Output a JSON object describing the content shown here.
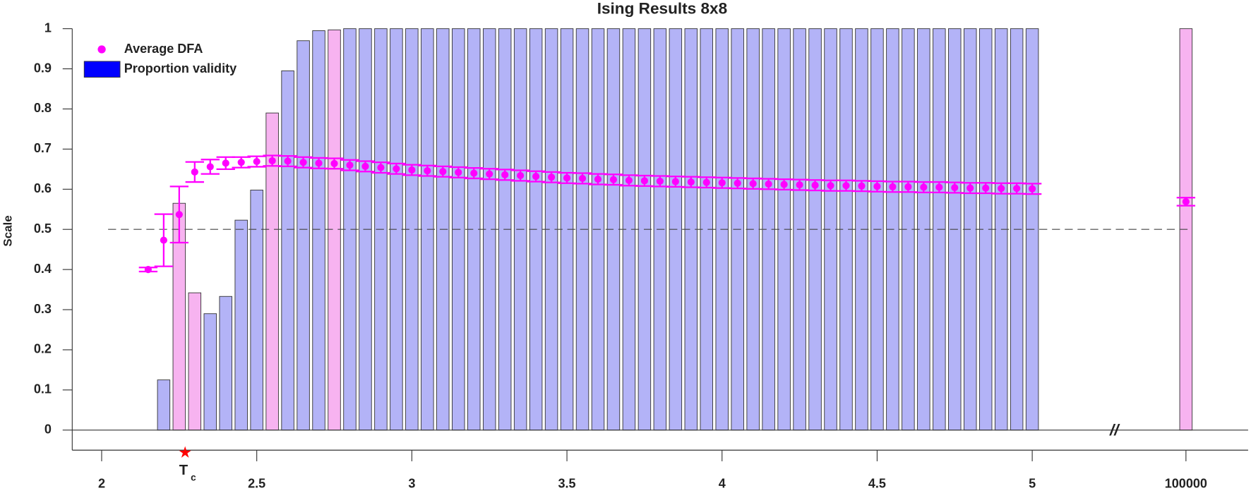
{
  "chart_data": {
    "type": "bar",
    "title": "Ising Results 8x8",
    "ylabel": "Scale",
    "legend": "upper left",
    "xlim": [
      1.9,
      5.2
    ],
    "ylim": [
      -0.05,
      1.0
    ],
    "xticks": [
      2,
      2.5,
      3,
      3.5,
      4,
      4.5,
      5
    ],
    "yticks": [
      0,
      0.1,
      0.2,
      0.3,
      0.4,
      0.5,
      0.6,
      0.7,
      0.8,
      0.9,
      1
    ],
    "break_tick": 100000,
    "break_label": "//",
    "hline": 0.5,
    "tc": {
      "x": 2.269,
      "label": "T",
      "sub": "c",
      "color": "#ff0000"
    },
    "series": [
      {
        "name": "Average DFA",
        "type": "errorbar",
        "color": "#ff00ff",
        "x": [
          2.15,
          2.2,
          2.25,
          2.3,
          2.35,
          2.4,
          2.45,
          2.5,
          2.55,
          2.6,
          2.65,
          2.7,
          2.75,
          2.8,
          2.85,
          2.9,
          2.95,
          3.0,
          3.05,
          3.1,
          3.15,
          3.2,
          3.25,
          3.3,
          3.35,
          3.4,
          3.45,
          3.5,
          3.55,
          3.6,
          3.65,
          3.7,
          3.75,
          3.8,
          3.85,
          3.9,
          3.95,
          4.0,
          4.05,
          4.1,
          4.15,
          4.2,
          4.25,
          4.3,
          4.35,
          4.4,
          4.45,
          4.5,
          4.55,
          4.6,
          4.65,
          4.7,
          4.75,
          4.8,
          4.85,
          4.9,
          4.95,
          5.0
        ],
        "values": [
          0.4,
          0.473,
          0.537,
          0.643,
          0.656,
          0.665,
          0.667,
          0.669,
          0.671,
          0.67,
          0.667,
          0.665,
          0.664,
          0.66,
          0.657,
          0.654,
          0.651,
          0.648,
          0.646,
          0.644,
          0.642,
          0.64,
          0.638,
          0.636,
          0.634,
          0.632,
          0.63,
          0.628,
          0.627,
          0.625,
          0.624,
          0.622,
          0.621,
          0.62,
          0.619,
          0.618,
          0.617,
          0.616,
          0.615,
          0.614,
          0.613,
          0.612,
          0.611,
          0.61,
          0.609,
          0.609,
          0.608,
          0.607,
          0.606,
          0.606,
          0.605,
          0.605,
          0.604,
          0.603,
          0.603,
          0.602,
          0.602,
          0.601
        ],
        "errors": [
          0.005,
          0.065,
          0.07,
          0.025,
          0.018,
          0.015,
          0.013,
          0.013,
          0.013,
          0.013,
          0.013,
          0.013,
          0.013,
          0.013,
          0.013,
          0.013,
          0.013,
          0.013,
          0.013,
          0.013,
          0.013,
          0.013,
          0.013,
          0.013,
          0.013,
          0.013,
          0.013,
          0.013,
          0.013,
          0.013,
          0.013,
          0.013,
          0.013,
          0.013,
          0.013,
          0.013,
          0.013,
          0.013,
          0.013,
          0.013,
          0.013,
          0.013,
          0.013,
          0.013,
          0.013,
          0.013,
          0.013,
          0.013,
          0.013,
          0.013,
          0.013,
          0.013,
          0.013,
          0.013,
          0.013,
          0.013,
          0.013,
          0.013
        ],
        "break_value": 0.569,
        "break_error": 0.01
      },
      {
        "name": "Proportion validity",
        "type": "bar",
        "color": "#0000ff",
        "x": [
          2.2,
          2.25,
          2.3,
          2.35,
          2.4,
          2.45,
          2.5,
          2.55,
          2.6,
          2.65,
          2.7,
          2.75,
          2.8,
          2.85,
          2.9,
          2.95,
          3.0,
          3.05,
          3.1,
          3.15,
          3.2,
          3.25,
          3.3,
          3.35,
          3.4,
          3.45,
          3.5,
          3.55,
          3.6,
          3.65,
          3.7,
          3.75,
          3.8,
          3.85,
          3.9,
          3.95,
          4.0,
          4.05,
          4.1,
          4.15,
          4.2,
          4.25,
          4.3,
          4.35,
          4.4,
          4.45,
          4.5,
          4.55,
          4.6,
          4.65,
          4.7,
          4.75,
          4.8,
          4.85,
          4.9,
          4.95,
          5.0
        ],
        "values": [
          0.125,
          0.565,
          0.342,
          0.29,
          0.333,
          0.523,
          0.598,
          0.79,
          0.895,
          0.97,
          0.995,
          0.997,
          1,
          1,
          1,
          1,
          1,
          1,
          1,
          1,
          1,
          1,
          1,
          1,
          1,
          1,
          1,
          1,
          1,
          1,
          1,
          1,
          1,
          1,
          1,
          1,
          1,
          1,
          1,
          1,
          1,
          1,
          1,
          1,
          1,
          1,
          1,
          1,
          1,
          1,
          1,
          1,
          1,
          1,
          1,
          1,
          1
        ],
        "colors": [
          "#b3b3f7",
          "#f7b3f0",
          "#f7b3f0",
          "#b3b3f7",
          "#b3b3f7",
          "#b3b3f7",
          "#b3b3f7",
          "#f7b3f0",
          "#b3b3f7",
          "#b3b3f7",
          "#b3b3f7",
          "#f7b3f0",
          "#b3b3f7",
          "#b3b3f7",
          "#b3b3f7",
          "#b3b3f7",
          "#b3b3f7",
          "#b3b3f7",
          "#b3b3f7",
          "#b3b3f7",
          "#b3b3f7",
          "#b3b3f7",
          "#b3b3f7",
          "#b3b3f7",
          "#b3b3f7",
          "#b3b3f7",
          "#b3b3f7",
          "#b3b3f7",
          "#b3b3f7",
          "#b3b3f7",
          "#b3b3f7",
          "#b3b3f7",
          "#b3b3f7",
          "#b3b3f7",
          "#b3b3f7",
          "#b3b3f7",
          "#b3b3f7",
          "#b3b3f7",
          "#b3b3f7",
          "#b3b3f7",
          "#b3b3f7",
          "#b3b3f7",
          "#b3b3f7",
          "#b3b3f7",
          "#b3b3f7",
          "#b3b3f7",
          "#b3b3f7",
          "#b3b3f7",
          "#b3b3f7",
          "#b3b3f7",
          "#b3b3f7",
          "#b3b3f7",
          "#b3b3f7",
          "#b3b3f7",
          "#b3b3f7",
          "#b3b3f7",
          "#b3b3f7"
        ],
        "break_value": 1,
        "break_color": "#f7b3f0"
      }
    ]
  }
}
